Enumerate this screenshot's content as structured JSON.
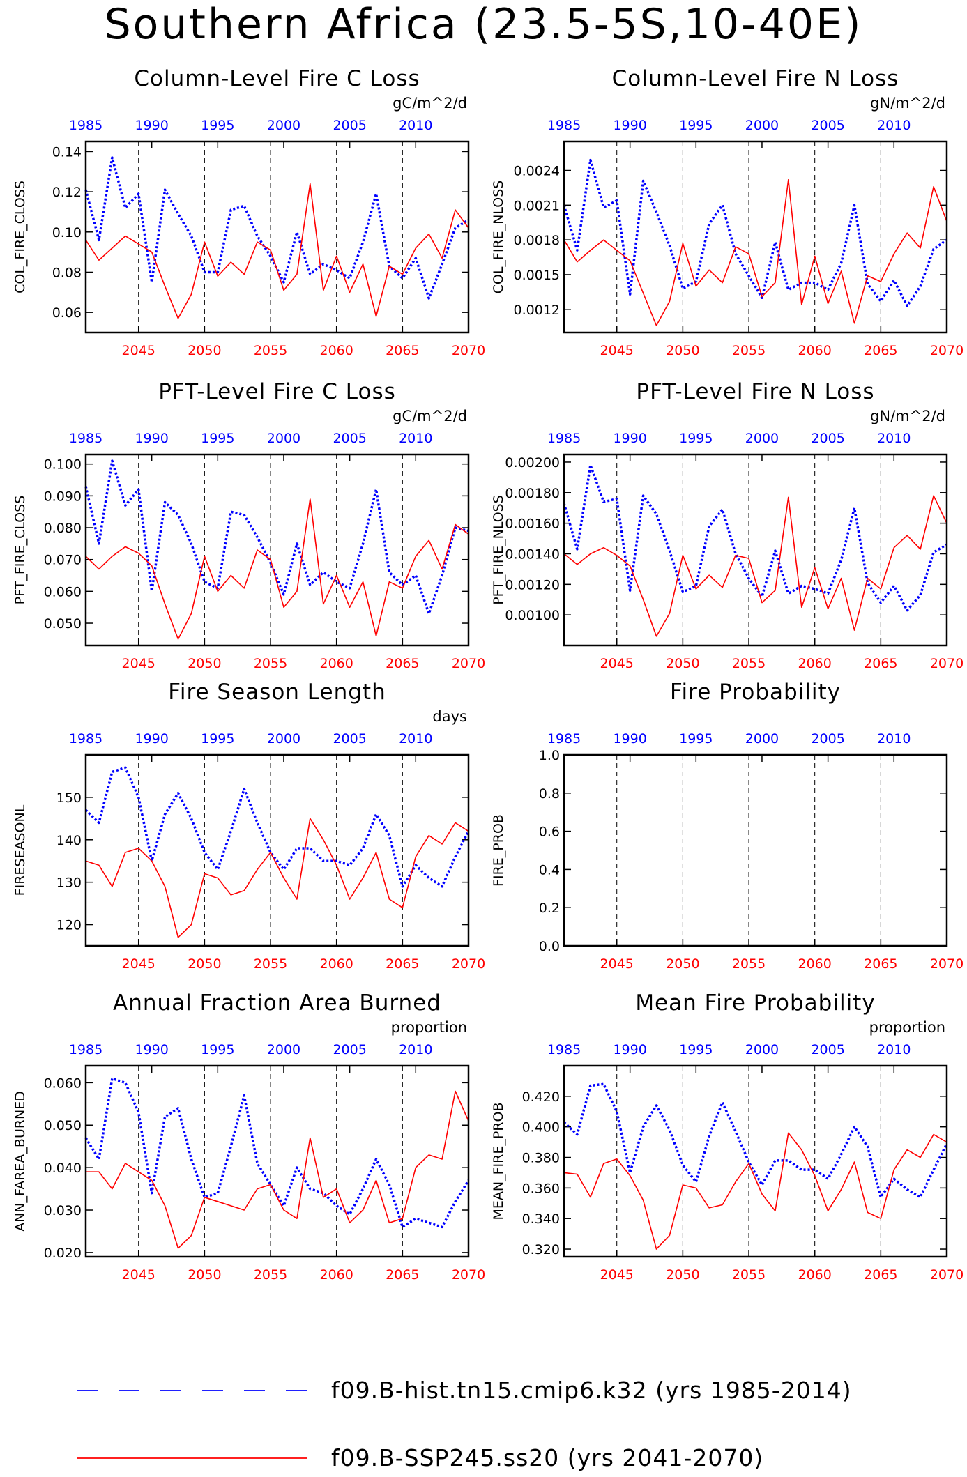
{
  "title": "Southern Africa (23.5-5S,10-40E)",
  "colors": {
    "hist": "#0000ff",
    "ssp": "#ff0000",
    "axis": "#000000"
  },
  "legend": [
    {
      "label": "f09.B-hist.tn15.cmip6.k32 (yrs 1985-2014)",
      "color": "#0000ff",
      "style": "dashed"
    },
    {
      "label": "f09.B-SSP245.ss20 (yrs 2041-2070)",
      "color": "#ff0000",
      "style": "solid"
    }
  ],
  "chart_data": [
    {
      "type": "line",
      "title": "Column-Level Fire C Loss",
      "ylabel": "COL_FIRE_CLOSS",
      "units": "gC/m^2/d",
      "ylim": [
        0.05,
        0.145
      ],
      "yticks": [
        0.06,
        0.08,
        0.1,
        0.12,
        0.14
      ],
      "ytick_labels": [
        "0.06",
        "0.08",
        "0.10",
        "0.12",
        "0.14"
      ],
      "top_axis": {
        "ticks": [
          1985,
          1990,
          1995,
          2000,
          2005,
          2010
        ],
        "range": [
          1985,
          2014
        ]
      },
      "bottom_axis": {
        "ticks": [
          2045,
          2050,
          2055,
          2060,
          2065,
          2070
        ],
        "range": [
          2041,
          2070
        ]
      },
      "vlines": [
        2045,
        2050,
        2055,
        2060,
        2065
      ],
      "series": [
        {
          "name": "f09.B-hist.tn15.cmip6.k32",
          "x_range": [
            1985,
            2014
          ],
          "values": [
            0.121,
            0.096,
            0.137,
            0.112,
            0.119,
            0.075,
            0.121,
            0.109,
            0.098,
            0.08,
            0.08,
            0.111,
            0.113,
            0.098,
            0.088,
            0.075,
            0.1,
            0.079,
            0.084,
            0.081,
            0.077,
            0.095,
            0.119,
            0.083,
            0.077,
            0.087,
            0.067,
            0.084,
            0.102,
            0.106
          ]
        },
        {
          "name": "f09.B-SSP245.ss20",
          "x_range": [
            2041,
            2070
          ],
          "values": [
            0.096,
            0.086,
            0.092,
            0.098,
            0.094,
            0.09,
            0.073,
            0.057,
            0.069,
            0.095,
            0.078,
            0.085,
            0.079,
            0.095,
            0.091,
            0.071,
            0.079,
            0.124,
            0.071,
            0.088,
            0.07,
            0.084,
            0.058,
            0.083,
            0.079,
            0.092,
            0.099,
            0.087,
            0.111,
            0.102
          ]
        }
      ]
    },
    {
      "type": "line",
      "title": "Column-Level Fire N Loss",
      "ylabel": "COL_FIRE_NLOSS",
      "units": "gN/m^2/d",
      "ylim": [
        0.001,
        0.00265
      ],
      "yticks": [
        0.0012,
        0.0015,
        0.0018,
        0.0021,
        0.0024
      ],
      "ytick_labels": [
        "0.0012",
        "0.0015",
        "0.0018",
        "0.0021",
        "0.0024"
      ],
      "top_axis": {
        "ticks": [
          1985,
          1990,
          1995,
          2000,
          2005,
          2010
        ],
        "range": [
          1985,
          2014
        ]
      },
      "bottom_axis": {
        "ticks": [
          2045,
          2050,
          2055,
          2060,
          2065,
          2070
        ],
        "range": [
          2041,
          2070
        ]
      },
      "vlines": [
        2045,
        2050,
        2055,
        2060,
        2065
      ],
      "series": [
        {
          "name": "f09.B-hist.tn15.cmip6.k32",
          "x_range": [
            1985,
            2014
          ],
          "values": [
            0.0021,
            0.00171,
            0.00249,
            0.00208,
            0.00214,
            0.00133,
            0.00231,
            0.00204,
            0.00175,
            0.00138,
            0.00144,
            0.00194,
            0.0021,
            0.00168,
            0.00149,
            0.0013,
            0.00178,
            0.00137,
            0.00143,
            0.00143,
            0.00137,
            0.0016,
            0.0021,
            0.00142,
            0.00127,
            0.00145,
            0.00123,
            0.0014,
            0.00172,
            0.0018
          ]
        },
        {
          "name": "f09.B-SSP245.ss20",
          "x_range": [
            2041,
            2070
          ],
          "values": [
            0.0018,
            0.00161,
            0.00171,
            0.0018,
            0.00171,
            0.00162,
            0.00134,
            0.00106,
            0.00127,
            0.00177,
            0.0014,
            0.00154,
            0.00143,
            0.00174,
            0.00168,
            0.00131,
            0.00143,
            0.00232,
            0.00124,
            0.00166,
            0.00125,
            0.00153,
            0.00108,
            0.00149,
            0.00144,
            0.00168,
            0.00186,
            0.00173,
            0.00226,
            0.00196
          ]
        }
      ]
    },
    {
      "type": "line",
      "title": "PFT-Level Fire C Loss",
      "ylabel": "PFT_FIRE_CLOSS",
      "units": "gC/m^2/d",
      "ylim": [
        0.043,
        0.103
      ],
      "yticks": [
        0.05,
        0.06,
        0.07,
        0.08,
        0.09,
        0.1
      ],
      "ytick_labels": [
        "0.050",
        "0.060",
        "0.070",
        "0.080",
        "0.090",
        "0.100"
      ],
      "top_axis": {
        "ticks": [
          1985,
          1990,
          1995,
          2000,
          2005,
          2010
        ],
        "range": [
          1985,
          2014
        ]
      },
      "bottom_axis": {
        "ticks": [
          2045,
          2050,
          2055,
          2060,
          2065,
          2070
        ],
        "range": [
          2041,
          2070
        ]
      },
      "vlines": [
        2045,
        2050,
        2055,
        2060,
        2065
      ],
      "series": [
        {
          "name": "f09.B-hist.tn15.cmip6.k32",
          "x_range": [
            1985,
            2014
          ],
          "values": [
            0.093,
            0.075,
            0.101,
            0.087,
            0.092,
            0.06,
            0.088,
            0.084,
            0.075,
            0.063,
            0.061,
            0.085,
            0.084,
            0.077,
            0.069,
            0.059,
            0.075,
            0.062,
            0.066,
            0.063,
            0.061,
            0.075,
            0.092,
            0.066,
            0.062,
            0.065,
            0.053,
            0.065,
            0.08,
            0.079
          ]
        },
        {
          "name": "f09.B-SSP245.ss20",
          "x_range": [
            2041,
            2070
          ],
          "values": [
            0.071,
            0.067,
            0.071,
            0.074,
            0.072,
            0.068,
            0.056,
            0.045,
            0.053,
            0.071,
            0.06,
            0.065,
            0.061,
            0.073,
            0.07,
            0.055,
            0.06,
            0.089,
            0.056,
            0.065,
            0.055,
            0.063,
            0.046,
            0.063,
            0.061,
            0.071,
            0.076,
            0.067,
            0.081,
            0.078
          ]
        }
      ]
    },
    {
      "type": "line",
      "title": "PFT-Level Fire N Loss",
      "ylabel": "PFT_FIRE_NLOSS",
      "units": "gN/m^2/d",
      "ylim": [
        0.0008,
        0.00205
      ],
      "yticks": [
        0.001,
        0.0012,
        0.0014,
        0.0016,
        0.0018,
        0.002
      ],
      "ytick_labels": [
        "0.00100",
        "0.00120",
        "0.00140",
        "0.00160",
        "0.00180",
        "0.00200"
      ],
      "top_axis": {
        "ticks": [
          1985,
          1990,
          1995,
          2000,
          2005,
          2010
        ],
        "range": [
          1985,
          2014
        ]
      },
      "bottom_axis": {
        "ticks": [
          2045,
          2050,
          2055,
          2060,
          2065,
          2070
        ],
        "range": [
          2041,
          2070
        ]
      },
      "vlines": [
        2045,
        2050,
        2055,
        2060,
        2065
      ],
      "series": [
        {
          "name": "f09.B-hist.tn15.cmip6.k32",
          "x_range": [
            1985,
            2014
          ],
          "values": [
            0.00173,
            0.00143,
            0.00198,
            0.00174,
            0.00176,
            0.00116,
            0.00178,
            0.00166,
            0.00142,
            0.00115,
            0.00119,
            0.00158,
            0.00169,
            0.0014,
            0.00124,
            0.00112,
            0.00142,
            0.00114,
            0.00119,
            0.00117,
            0.00114,
            0.00136,
            0.0017,
            0.00121,
            0.00108,
            0.00119,
            0.00103,
            0.00113,
            0.00141,
            0.00146
          ]
        },
        {
          "name": "f09.B-SSP245.ss20",
          "x_range": [
            2041,
            2070
          ],
          "values": [
            0.0014,
            0.00133,
            0.0014,
            0.00144,
            0.00139,
            0.00132,
            0.0011,
            0.00086,
            0.00101,
            0.00139,
            0.00117,
            0.00126,
            0.00118,
            0.00139,
            0.00137,
            0.00108,
            0.00116,
            0.00177,
            0.00105,
            0.00131,
            0.00104,
            0.00124,
            0.0009,
            0.00124,
            0.00117,
            0.00144,
            0.00152,
            0.00143,
            0.00178,
            0.0016
          ]
        }
      ]
    },
    {
      "type": "line",
      "title": "Fire Season Length",
      "ylabel": "FIRESEASONL",
      "units": "days",
      "ylim": [
        115,
        160
      ],
      "yticks": [
        120,
        130,
        140,
        150
      ],
      "ytick_labels": [
        "120",
        "130",
        "140",
        "150"
      ],
      "top_axis": {
        "ticks": [
          1985,
          1990,
          1995,
          2000,
          2005,
          2010
        ],
        "range": [
          1985,
          2014
        ]
      },
      "bottom_axis": {
        "ticks": [
          2045,
          2050,
          2055,
          2060,
          2065,
          2070
        ],
        "range": [
          2041,
          2070
        ]
      },
      "vlines": [
        2045,
        2050,
        2055,
        2060,
        2065
      ],
      "series": [
        {
          "name": "f09.B-hist.tn15.cmip6.k32",
          "x_range": [
            1985,
            2014
          ],
          "values": [
            147,
            144,
            156,
            157,
            150,
            135,
            146,
            151,
            145,
            137,
            133,
            142,
            152,
            144,
            137,
            133,
            138,
            138,
            135,
            135,
            134,
            138,
            146,
            141,
            129,
            134,
            131,
            129,
            136,
            142
          ]
        },
        {
          "name": "f09.B-SSP245.ss20",
          "x_range": [
            2041,
            2070
          ],
          "values": [
            135,
            134,
            129,
            137,
            138,
            135,
            129,
            117,
            120,
            132,
            131,
            127,
            128,
            133,
            137,
            131,
            126,
            145,
            140,
            134,
            126,
            131,
            137,
            126,
            124,
            136,
            141,
            139,
            144,
            142
          ]
        }
      ]
    },
    {
      "type": "line",
      "title": "Fire Probability",
      "ylabel": "FIRE_PROB",
      "units": "",
      "ylim": [
        0.0,
        1.0
      ],
      "yticks": [
        0.0,
        0.2,
        0.4,
        0.6,
        0.8,
        1.0
      ],
      "ytick_labels": [
        "0.0",
        "0.2",
        "0.4",
        "0.6",
        "0.8",
        "1.0"
      ],
      "top_axis": {
        "ticks": [
          1985,
          1990,
          1995,
          2000,
          2005,
          2010
        ],
        "range": [
          1985,
          2014
        ]
      },
      "bottom_axis": {
        "ticks": [
          2045,
          2050,
          2055,
          2060,
          2065,
          2070
        ],
        "range": [
          2041,
          2070
        ]
      },
      "vlines": [
        2045,
        2050,
        2055,
        2060,
        2065
      ],
      "series": []
    },
    {
      "type": "line",
      "title": "Annual Fraction Area Burned",
      "ylabel": "ANN_FAREA_BURNED",
      "units": "proportion",
      "ylim": [
        0.019,
        0.064
      ],
      "yticks": [
        0.02,
        0.03,
        0.04,
        0.05,
        0.06
      ],
      "ytick_labels": [
        "0.020",
        "0.030",
        "0.040",
        "0.050",
        "0.060"
      ],
      "top_axis": {
        "ticks": [
          1985,
          1990,
          1995,
          2000,
          2005,
          2010
        ],
        "range": [
          1985,
          2014
        ]
      },
      "bottom_axis": {
        "ticks": [
          2045,
          2050,
          2055,
          2060,
          2065,
          2070
        ],
        "range": [
          2041,
          2070
        ]
      },
      "vlines": [
        2045,
        2050,
        2055,
        2060,
        2065
      ],
      "series": [
        {
          "name": "f09.B-hist.tn15.cmip6.k32",
          "x_range": [
            1985,
            2014
          ],
          "values": [
            0.047,
            0.042,
            0.061,
            0.06,
            0.053,
            0.034,
            0.052,
            0.054,
            0.042,
            0.033,
            0.034,
            0.045,
            0.057,
            0.041,
            0.036,
            0.031,
            0.04,
            0.035,
            0.034,
            0.031,
            0.029,
            0.035,
            0.042,
            0.036,
            0.026,
            0.028,
            0.027,
            0.026,
            0.032,
            0.037
          ]
        },
        {
          "name": "f09.B-SSP245.ss20",
          "x_range": [
            2041,
            2070
          ],
          "values": [
            0.039,
            0.039,
            0.035,
            0.041,
            0.039,
            0.037,
            0.031,
            0.021,
            0.024,
            0.033,
            0.032,
            0.031,
            0.03,
            0.035,
            0.036,
            0.03,
            0.028,
            0.047,
            0.033,
            0.035,
            0.027,
            0.03,
            0.037,
            0.027,
            0.028,
            0.04,
            0.043,
            0.042,
            0.058,
            0.051
          ]
        }
      ]
    },
    {
      "type": "line",
      "title": "Mean Fire Probability",
      "ylabel": "MEAN_FIRE_PROB",
      "units": "proportion",
      "ylim": [
        0.315,
        0.44
      ],
      "yticks": [
        0.32,
        0.34,
        0.36,
        0.38,
        0.4,
        0.42
      ],
      "ytick_labels": [
        "0.320",
        "0.340",
        "0.360",
        "0.380",
        "0.400",
        "0.420"
      ],
      "top_axis": {
        "ticks": [
          1985,
          1990,
          1995,
          2000,
          2005,
          2010
        ],
        "range": [
          1985,
          2014
        ]
      },
      "bottom_axis": {
        "ticks": [
          2045,
          2050,
          2055,
          2060,
          2065,
          2070
        ],
        "range": [
          2041,
          2070
        ]
      },
      "vlines": [
        2045,
        2050,
        2055,
        2060,
        2065
      ],
      "series": [
        {
          "name": "f09.B-hist.tn15.cmip6.k32",
          "x_range": [
            1985,
            2014
          ],
          "values": [
            0.403,
            0.395,
            0.427,
            0.428,
            0.41,
            0.37,
            0.4,
            0.414,
            0.398,
            0.375,
            0.364,
            0.394,
            0.416,
            0.397,
            0.377,
            0.362,
            0.378,
            0.378,
            0.372,
            0.372,
            0.366,
            0.382,
            0.4,
            0.387,
            0.354,
            0.366,
            0.359,
            0.354,
            0.372,
            0.389
          ]
        },
        {
          "name": "f09.B-SSP245.ss20",
          "x_range": [
            2041,
            2070
          ],
          "values": [
            0.37,
            0.369,
            0.354,
            0.376,
            0.379,
            0.368,
            0.352,
            0.32,
            0.329,
            0.362,
            0.36,
            0.347,
            0.349,
            0.364,
            0.376,
            0.356,
            0.345,
            0.396,
            0.385,
            0.368,
            0.345,
            0.359,
            0.377,
            0.344,
            0.34,
            0.372,
            0.385,
            0.38,
            0.395,
            0.39
          ]
        }
      ]
    }
  ]
}
